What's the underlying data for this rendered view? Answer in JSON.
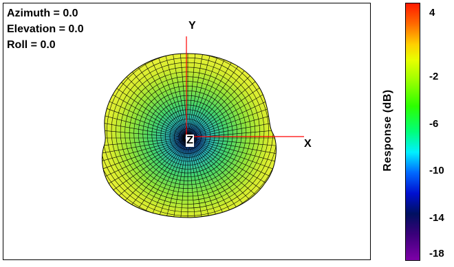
{
  "viewport": {
    "azimuth_label": "Azimuth = 0.0",
    "elevation_label": "Elevation = 0.0",
    "roll_label": "Roll = 0.0"
  },
  "axes": {
    "x_label": "X",
    "y_label": "Y",
    "z_label": "Z",
    "axis_color": "#ff0000"
  },
  "colorbar": {
    "title": "Response  (dB)",
    "ticks": [
      "4",
      "-2",
      "-6",
      "-10",
      "-14",
      "-18"
    ],
    "colors": {
      "high": "#ff1a00",
      "mid": "#2cff00",
      "low": "#7e00a8"
    }
  },
  "pattern": {
    "outer_color": "#e6f23a",
    "mid_color": "#8fe84a",
    "inner_color": "#2ec7a0",
    "core_color": "#0a3a8a",
    "mesh_color": "#000000"
  }
}
